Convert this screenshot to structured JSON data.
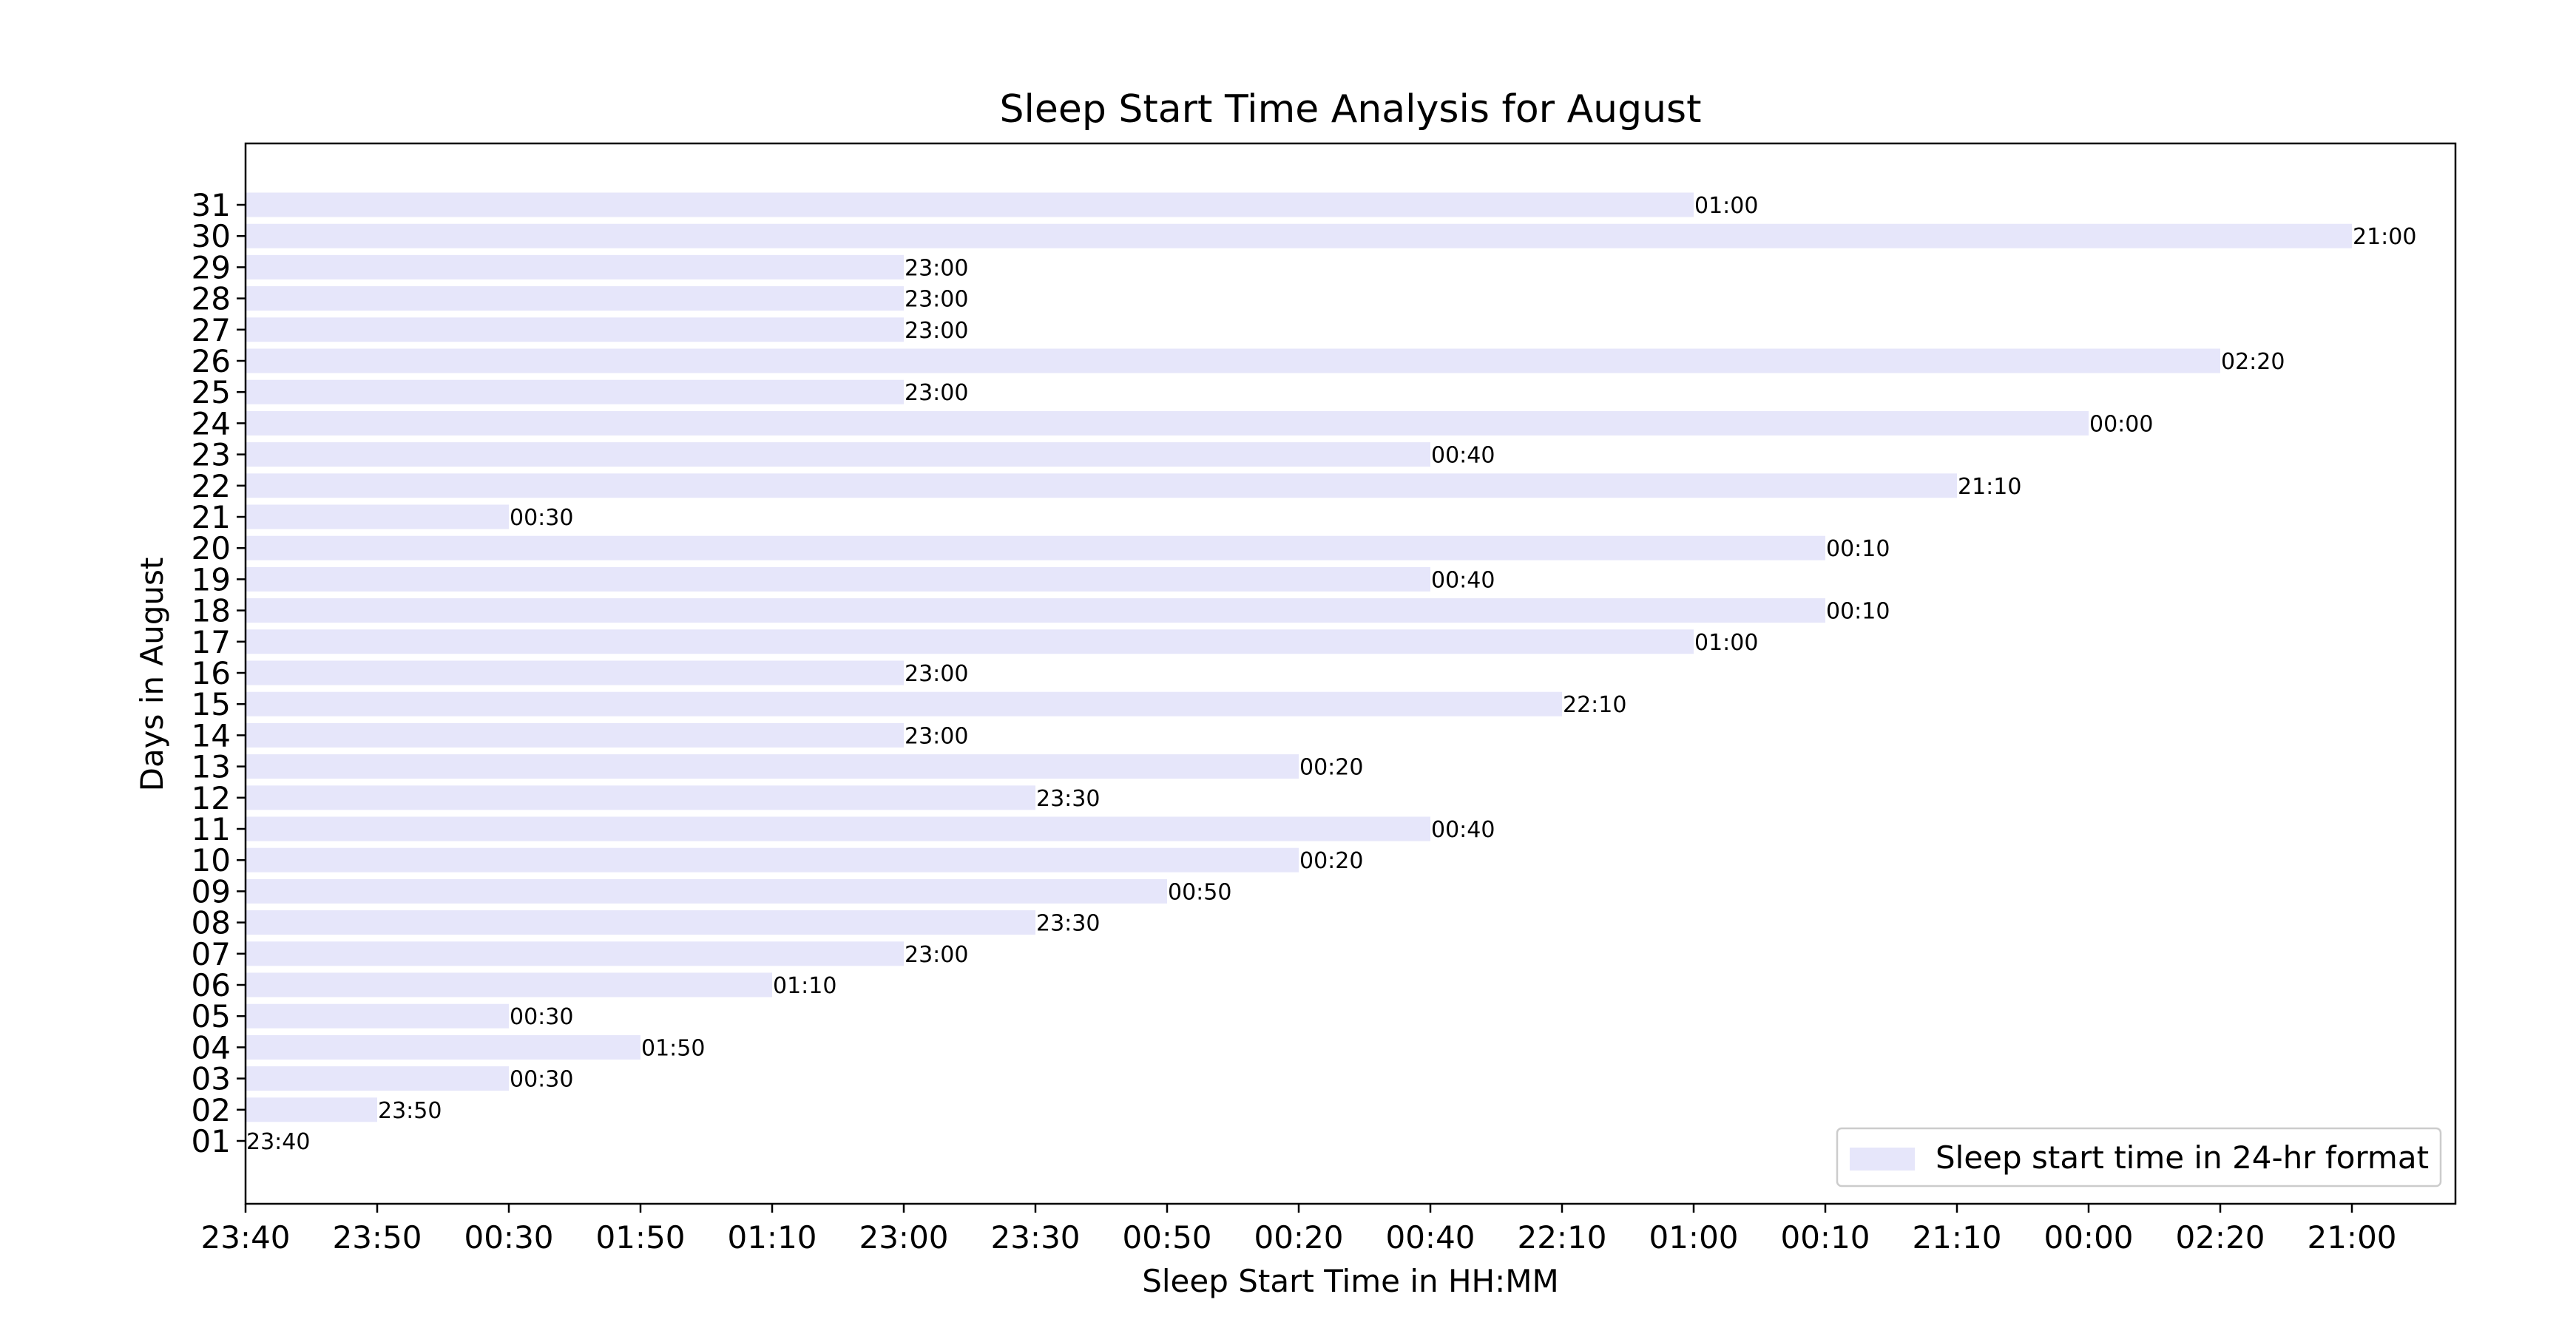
{
  "chart_data": {
    "type": "bar",
    "orientation": "horizontal",
    "title": "Sleep Start Time Analysis for August",
    "xlabel": "Sleep Start Time in HH:MM",
    "ylabel": "Days in August",
    "x_tick_labels": [
      "23:40",
      "23:50",
      "00:30",
      "01:50",
      "01:10",
      "23:00",
      "23:30",
      "00:50",
      "00:20",
      "00:40",
      "22:10",
      "01:00",
      "00:10",
      "21:10",
      "00:00",
      "02:20",
      "21:00"
    ],
    "categories": [
      "01",
      "02",
      "03",
      "04",
      "05",
      "06",
      "07",
      "08",
      "09",
      "10",
      "11",
      "12",
      "13",
      "14",
      "15",
      "16",
      "17",
      "18",
      "19",
      "20",
      "21",
      "22",
      "23",
      "24",
      "25",
      "26",
      "27",
      "28",
      "29",
      "30",
      "31"
    ],
    "series": [
      {
        "name": "Sleep start time in 24-hr format",
        "values": [
          "23:40",
          "23:50",
          "00:30",
          "01:50",
          "00:30",
          "01:10",
          "23:00",
          "23:30",
          "00:50",
          "00:20",
          "00:40",
          "23:30",
          "00:20",
          "23:00",
          "22:10",
          "23:00",
          "01:00",
          "00:10",
          "00:40",
          "00:10",
          "00:30",
          "21:10",
          "00:40",
          "00:00",
          "23:00",
          "02:20",
          "23:00",
          "23:00",
          "23:00",
          "21:00",
          "01:00"
        ],
        "color": "#e6e6fa"
      }
    ],
    "data_labels": [
      "23:40",
      "23:50",
      "00:30",
      "01:50",
      "00:30",
      "01:10",
      "23:00",
      "23:30",
      "00:50",
      "00:20",
      "00:40",
      "23:30",
      "00:20",
      "23:00",
      "22:10",
      "23:00",
      "01:00",
      "00:10",
      "00:40",
      "00:10",
      "00:30",
      "21:10",
      "00:40",
      "00:00",
      "23:00",
      "02:20",
      "23:00",
      "23:00",
      "23:00",
      "21:00",
      "01:00"
    ],
    "grid": false,
    "legend_position": "lower-right"
  }
}
